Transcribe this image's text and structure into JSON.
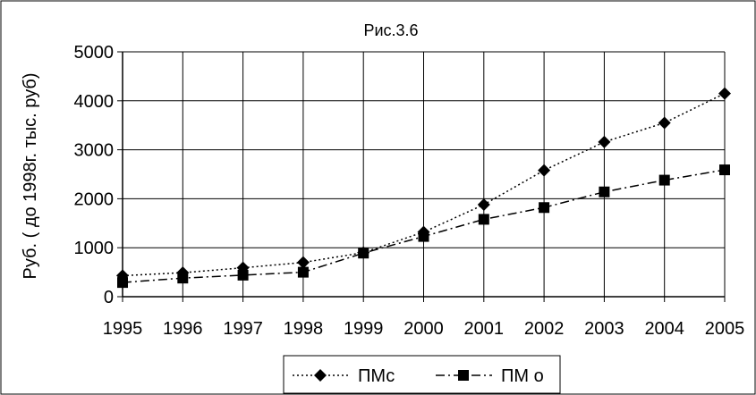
{
  "chart_data": {
    "type": "line",
    "title": "Рис.3.6",
    "xlabel": "",
    "ylabel": "Руб. ( до 1998г. тыс. руб)",
    "categories": [
      "1995",
      "1996",
      "1997",
      "1998",
      "1999",
      "2000",
      "2001",
      "2002",
      "2003",
      "2004",
      "2005"
    ],
    "ylim": [
      0,
      5000
    ],
    "yticks": [
      "0",
      "1000",
      "2000",
      "3000",
      "4000",
      "5000"
    ],
    "grid": true,
    "legend_position": "bottom",
    "series": [
      {
        "name": "ПМс",
        "marker": "diamond",
        "line_style": "dotted",
        "color": "#000000",
        "values": [
          430,
          490,
          590,
          700,
          900,
          1320,
          1880,
          2580,
          3160,
          3550,
          4150
        ]
      },
      {
        "name": "ПМ о",
        "marker": "square",
        "line_style": "dash-dot",
        "color": "#000000",
        "values": [
          290,
          380,
          440,
          500,
          890,
          1230,
          1580,
          1820,
          2140,
          2380,
          2590
        ]
      }
    ]
  }
}
